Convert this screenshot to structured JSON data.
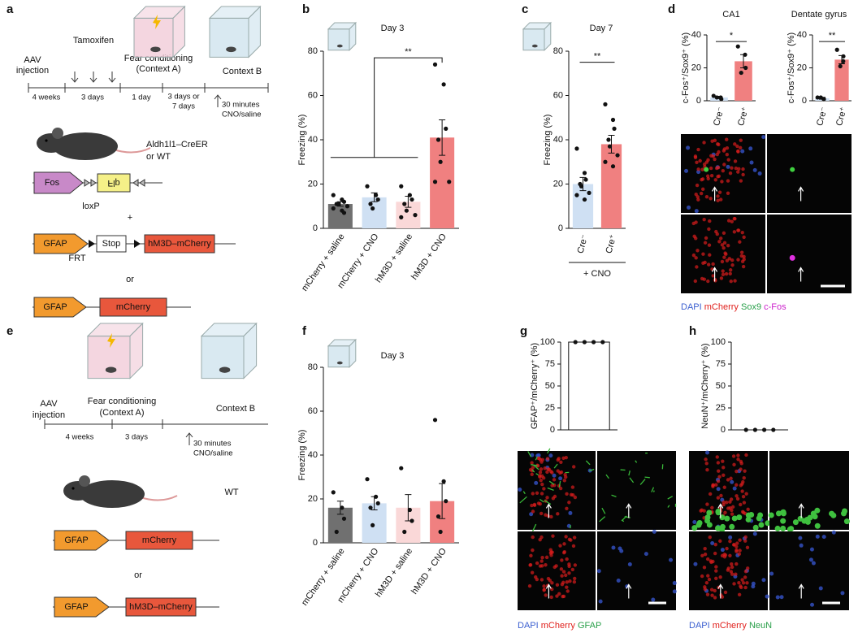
{
  "panel_labels": [
    "a",
    "b",
    "c",
    "d",
    "e",
    "f",
    "g",
    "h"
  ],
  "panel_a": {
    "aav": [
      "AAV",
      "injection"
    ],
    "tamoxifen": "Tamoxifen",
    "fear": [
      "Fear conditioning",
      "(Context A)"
    ],
    "context_b": "Context B",
    "intervals": [
      "4 weeks",
      "3 days",
      "1 day",
      "3 days or",
      "7 days"
    ],
    "treatment": [
      "30 minutes",
      "CNO/saline"
    ],
    "mouse": [
      "Aldh1l1–CreER",
      "or WT"
    ],
    "fos": "Fos",
    "flp": "Flp",
    "loxp": "loxP",
    "plus": "+",
    "gfap_1": "GFAP",
    "stop": "Stop",
    "hm3d_1": "hM3D–mCherry",
    "frt": "FRT",
    "or": "or",
    "gfap_2": "GFAP",
    "mcherry": "mCherry"
  },
  "panel_e": {
    "aav": [
      "AAV",
      "injection"
    ],
    "fear": [
      "Fear conditioning",
      "(Context A)"
    ],
    "context_b": "Context B",
    "intervals": [
      "4 weeks",
      "3 days"
    ],
    "treatment": [
      "30 minutes",
      "CNO/saline"
    ],
    "mouse": "WT",
    "gfap_1": "GFAP",
    "mcherry": "mCherry",
    "or": "or",
    "gfap_2": "GFAP",
    "hm3d": "hM3D–mCherry"
  },
  "micrograph_captions": {
    "d": [
      "DAPI",
      "mCherry",
      "Sox9",
      "c-Fos"
    ],
    "g": [
      "DAPI",
      "mCherry",
      "GFAP"
    ],
    "h": [
      "DAPI",
      "mCherry",
      "NeuN"
    ]
  },
  "chart_data": [
    {
      "type": "bar",
      "title": "Day 3",
      "ylabel": "Freezing (%)",
      "categories": [
        "mCherry + saline",
        "mCherry + CNO",
        "hM3D + saline",
        "hM3D + CNO"
      ],
      "values": [
        11,
        14,
        12,
        41
      ],
      "errors": [
        1,
        2,
        2.5,
        8
      ],
      "points": [
        [
          15,
          13,
          12,
          11,
          11,
          10,
          9,
          8,
          7
        ],
        [
          19,
          15,
          13,
          11,
          9
        ],
        [
          19,
          15,
          13,
          11,
          8,
          6,
          5
        ],
        [
          74,
          65,
          45,
          40,
          30,
          21,
          21
        ]
      ],
      "colors": [
        "#707070",
        "#cfe0f3",
        "#fad8d8",
        "#f08080"
      ],
      "ylim": [
        0,
        80
      ],
      "yticks": [
        0,
        20,
        40,
        60,
        80
      ],
      "annotation": "**"
    },
    {
      "type": "bar",
      "title": "Day 7",
      "ylabel": "Freezing (%)",
      "categories": [
        "Cre⁻",
        "Cre⁺"
      ],
      "group_label": "+ CNO",
      "values": [
        20,
        38
      ],
      "errors": [
        3,
        4
      ],
      "points": [
        [
          36,
          25,
          22,
          20,
          19,
          16,
          15,
          13
        ],
        [
          56,
          49,
          45,
          40,
          37,
          33,
          30,
          28
        ]
      ],
      "colors": [
        "#cfe0f3",
        "#f08080"
      ],
      "ylim": [
        0,
        80
      ],
      "yticks": [
        0,
        20,
        40,
        60,
        80
      ],
      "annotation": "**"
    },
    {
      "type": "bar",
      "title": "CA1",
      "ylabel": "c-Fos⁺/Sox9⁺ (%)",
      "categories": [
        "Cre⁻",
        "Cre⁺"
      ],
      "values": [
        2,
        24
      ],
      "errors": [
        0.7,
        4
      ],
      "points": [
        [
          3,
          2,
          1,
          2
        ],
        [
          33,
          28,
          20,
          17
        ]
      ],
      "colors": [
        "#cfe0f3",
        "#f08080"
      ],
      "ylim": [
        0,
        40
      ],
      "yticks": [
        0,
        20,
        40
      ],
      "annotation": "*"
    },
    {
      "type": "bar",
      "title": "Dentate gyrus",
      "ylabel": "c-Fos⁺/Sox9⁺ (%)",
      "categories": [
        "Cre⁻",
        "Cre⁺"
      ],
      "values": [
        1.5,
        25
      ],
      "errors": [
        0.6,
        2.5
      ],
      "points": [
        [
          2,
          1,
          1,
          2
        ],
        [
          31,
          27,
          24,
          21
        ]
      ],
      "colors": [
        "#cfe0f3",
        "#f08080"
      ],
      "ylim": [
        0,
        40
      ],
      "yticks": [
        0,
        20,
        40
      ],
      "annotation": "**"
    },
    {
      "type": "bar",
      "title": "Day 3",
      "ylabel": "Freezing (%)",
      "categories": [
        "mCherry + saline",
        "mCherry + CNO",
        "hM3D + saline",
        "hM3D + CNO"
      ],
      "values": [
        16,
        18,
        16,
        19
      ],
      "errors": [
        3,
        3,
        6,
        8
      ],
      "points": [
        [
          23,
          16,
          11,
          5
        ],
        [
          29,
          21,
          18,
          16,
          8
        ],
        [
          34,
          15,
          10,
          5
        ],
        [
          56,
          28,
          19,
          12,
          5
        ]
      ],
      "colors": [
        "#707070",
        "#cfe0f3",
        "#fad8d8",
        "#f08080"
      ],
      "ylim": [
        0,
        80
      ],
      "yticks": [
        0,
        20,
        40,
        60,
        80
      ]
    },
    {
      "type": "bar",
      "ylabel": "GFAP⁺/mCherry⁺ (%)",
      "values": [
        100
      ],
      "points": [
        [
          100,
          100,
          100,
          100
        ]
      ],
      "colors": [
        "#ffffff"
      ],
      "ylim": [
        0,
        100
      ],
      "yticks": [
        0,
        25,
        50,
        75,
        100
      ]
    },
    {
      "type": "bar",
      "ylabel": "NeuN⁺/mCherry⁺ (%)",
      "values": [
        0
      ],
      "points": [
        [
          0,
          0,
          0,
          0
        ]
      ],
      "colors": [
        "#ffffff"
      ],
      "ylim": [
        0,
        100
      ],
      "yticks": [
        0,
        25,
        50,
        75,
        100
      ]
    }
  ]
}
